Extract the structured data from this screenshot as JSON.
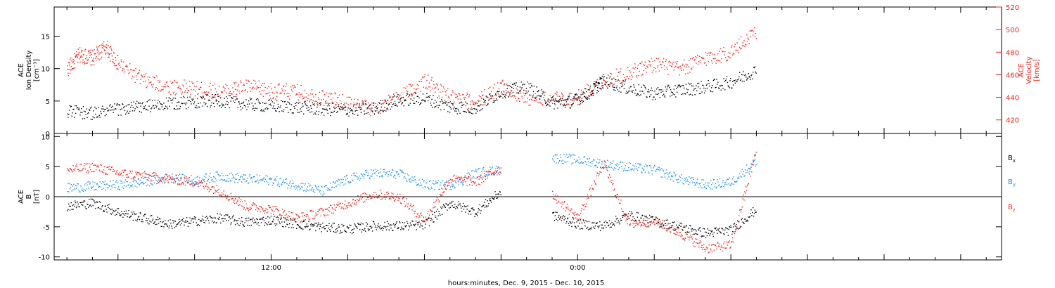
{
  "footer_label": "hours:minutes, Dec.  9, 2015 - Dec. 10, 2015",
  "colors": {
    "black": "#000000",
    "blue": "#1e8fe6",
    "red": "#e8231b"
  },
  "chart_data": [
    {
      "type": "scatter",
      "panel": "top",
      "ylabel": [
        "ACE",
        "Ion Density",
        "[cm⁻³]"
      ],
      "ylabel_right": [
        "ACE",
        "Velocity",
        "[km/s]"
      ],
      "ylim": [
        0,
        19.5
      ],
      "ylim_right": [
        408,
        520
      ],
      "yticks": [
        0,
        5,
        10,
        15
      ],
      "yticks_right": [
        420,
        440,
        460,
        480,
        500,
        520
      ],
      "xlim_hours": [
        3.5,
        40.6
      ],
      "xtick_labels": [
        {
          "hour": 12,
          "label": "12:00"
        },
        {
          "hour": 24,
          "label": "0:00"
        }
      ],
      "grid": false,
      "series": [
        {
          "color": "black",
          "axis": "left",
          "points": [
            [
              4.0,
              3.5
            ],
            [
              5.0,
              3.2
            ],
            [
              6.0,
              3.8
            ],
            [
              7.0,
              4.2
            ],
            [
              8.0,
              4.6
            ],
            [
              9.0,
              5.0
            ],
            [
              10.0,
              5.1
            ],
            [
              11.0,
              4.6
            ],
            [
              12.0,
              4.3
            ],
            [
              13.0,
              4.1
            ],
            [
              14.0,
              3.8
            ],
            [
              15.0,
              3.7
            ],
            [
              16.0,
              3.9
            ],
            [
              17.0,
              5.2
            ],
            [
              18.0,
              5.5
            ],
            [
              19.0,
              4.1
            ],
            [
              20.0,
              4.0
            ],
            [
              21.0,
              6.5
            ],
            [
              22.0,
              7.2
            ],
            [
              23.0,
              4.8
            ],
            [
              23.8,
              5.0
            ],
            [
              24.5,
              6.5
            ],
            [
              25.0,
              8.2
            ],
            [
              26.0,
              7.0
            ],
            [
              27.0,
              6.2
            ],
            [
              28.0,
              6.8
            ],
            [
              29.0,
              7.2
            ],
            [
              30.0,
              8.0
            ],
            [
              31.0,
              9.8
            ]
          ]
        },
        {
          "color": "red",
          "axis": "right",
          "points": [
            [
              4.0,
              465
            ],
            [
              4.5,
              478
            ],
            [
              5.0,
              475
            ],
            [
              5.5,
              485
            ],
            [
              6.0,
              470
            ],
            [
              7.0,
              455
            ],
            [
              8.0,
              450
            ],
            [
              9.0,
              448
            ],
            [
              10.0,
              445
            ],
            [
              11.0,
              450
            ],
            [
              12.0,
              446
            ],
            [
              13.0,
              445
            ],
            [
              14.0,
              440
            ],
            [
              15.0,
              435
            ],
            [
              16.0,
              430
            ],
            [
              17.0,
              440
            ],
            [
              18.0,
              455
            ],
            [
              19.0,
              440
            ],
            [
              20.0,
              436
            ],
            [
              21.0,
              450
            ],
            [
              22.0,
              440
            ],
            [
              23.0,
              438
            ],
            [
              24.0,
              440
            ],
            [
              25.0,
              455
            ],
            [
              26.0,
              462
            ],
            [
              27.0,
              470
            ],
            [
              28.0,
              465
            ],
            [
              29.0,
              475
            ],
            [
              30.0,
              480
            ],
            [
              31.0,
              500
            ]
          ]
        }
      ]
    },
    {
      "type": "scatter",
      "panel": "bottom",
      "ylabel": [
        "ACE",
        "B",
        "[nT]"
      ],
      "ylim": [
        -10.5,
        10.5
      ],
      "yticks": [
        -10,
        -5,
        0,
        5,
        10
      ],
      "zero_line": true,
      "xlim_hours": [
        3.5,
        40.6
      ],
      "xtick_labels": [
        {
          "hour": 12,
          "label": "12:00"
        },
        {
          "hour": 24,
          "label": "0:00"
        }
      ],
      "legend_position": "right",
      "legend": [
        {
          "label": "B",
          "sub": "x",
          "color": "black"
        },
        {
          "label": "B",
          "sub": "y",
          "color": "blue"
        },
        {
          "label": "B",
          "sub": "z",
          "color": "red"
        }
      ],
      "series": [
        {
          "color": "black",
          "points": [
            [
              4.0,
              -1.5
            ],
            [
              5.0,
              -1.0
            ],
            [
              6.0,
              -2.5
            ],
            [
              7.0,
              -3.5
            ],
            [
              8.0,
              -4.5
            ],
            [
              9.0,
              -4.0
            ],
            [
              10.0,
              -3.5
            ],
            [
              11.0,
              -4.2
            ],
            [
              12.0,
              -3.8
            ],
            [
              13.0,
              -4.5
            ],
            [
              14.0,
              -5.0
            ],
            [
              15.0,
              -5.3
            ],
            [
              16.0,
              -4.8
            ],
            [
              17.0,
              -4.8
            ],
            [
              18.0,
              -4.6
            ],
            [
              19.0,
              -1.0
            ],
            [
              20.0,
              -2.5
            ],
            [
              21.0,
              1.0
            ],
            [
              23.0,
              -3.0
            ],
            [
              24.0,
              -4.5
            ],
            [
              25.0,
              -4.8
            ],
            [
              26.0,
              -3.0
            ],
            [
              27.0,
              -4.0
            ],
            [
              28.0,
              -5.0
            ],
            [
              29.0,
              -6.0
            ],
            [
              30.0,
              -5.5
            ],
            [
              31.0,
              -2.0
            ]
          ]
        },
        {
          "color": "blue",
          "points": [
            [
              4.0,
              1.5
            ],
            [
              5.0,
              1.8
            ],
            [
              6.0,
              2.0
            ],
            [
              7.0,
              2.5
            ],
            [
              8.0,
              3.2
            ],
            [
              9.0,
              2.8
            ],
            [
              10.0,
              3.5
            ],
            [
              11.0,
              3.0
            ],
            [
              12.0,
              2.8
            ],
            [
              13.0,
              2.0
            ],
            [
              14.0,
              1.0
            ],
            [
              15.0,
              3.0
            ],
            [
              16.0,
              4.0
            ],
            [
              17.0,
              3.8
            ],
            [
              18.0,
              2.0
            ],
            [
              19.0,
              2.0
            ],
            [
              20.0,
              4.0
            ],
            [
              21.0,
              4.5
            ],
            [
              23.0,
              6.5
            ],
            [
              24.0,
              6.2
            ],
            [
              25.0,
              5.5
            ],
            [
              26.0,
              5.0
            ],
            [
              27.0,
              4.5
            ],
            [
              28.0,
              3.0
            ],
            [
              29.0,
              2.0
            ],
            [
              30.0,
              2.5
            ],
            [
              31.0,
              6.0
            ]
          ]
        },
        {
          "color": "red",
          "points": [
            [
              4.0,
              4.5
            ],
            [
              5.0,
              5.0
            ],
            [
              6.0,
              4.0
            ],
            [
              7.0,
              3.5
            ],
            [
              8.0,
              3.0
            ],
            [
              9.0,
              2.5
            ],
            [
              10.0,
              1.0
            ],
            [
              11.0,
              -1.5
            ],
            [
              12.0,
              -2.0
            ],
            [
              13.0,
              -3.5
            ],
            [
              14.0,
              -2.5
            ],
            [
              15.0,
              -1.0
            ],
            [
              16.0,
              0.5
            ],
            [
              17.0,
              0.0
            ],
            [
              18.0,
              -3.8
            ],
            [
              19.0,
              3.0
            ],
            [
              20.0,
              2.5
            ],
            [
              21.0,
              5.0
            ],
            [
              23.0,
              0.5
            ],
            [
              24.0,
              -3.5
            ],
            [
              25.0,
              5.5
            ],
            [
              26.0,
              -4.5
            ],
            [
              27.0,
              -4.0
            ],
            [
              28.0,
              -6.0
            ],
            [
              29.0,
              -8.5
            ],
            [
              30.0,
              -8.0
            ],
            [
              31.0,
              8.0
            ]
          ]
        }
      ]
    }
  ]
}
